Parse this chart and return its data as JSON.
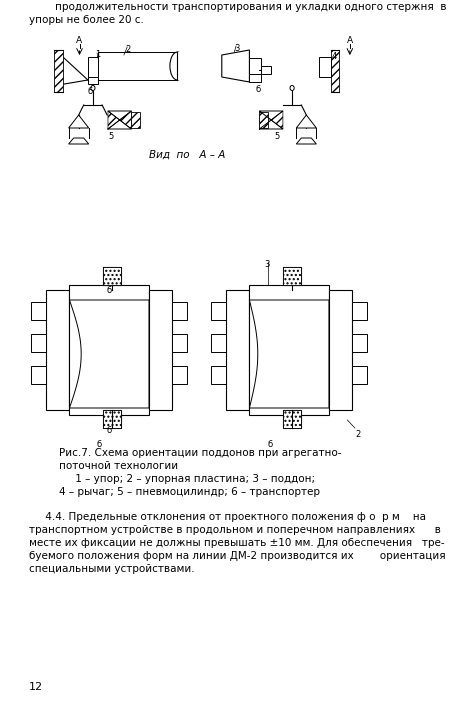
{
  "background_color": "#ffffff",
  "text_color": "#000000",
  "page_number": "12",
  "top_text_line1": "        продолжительности транспортирования и укладки одного стержня  в",
  "top_text_line2": "упоры не более 20 с.",
  "caption_line1": "Рис.7. Схема ориентации поддонов при агрегатно-",
  "caption_line2": "поточной технологии",
  "caption_line3": "     1 – упор; 2 – упорная пластина; 3 – поддон;",
  "caption_line4": "4 – рычаг; 5 – пневмоцилиндр; 6 – транспортер",
  "para_line1": "     4.4. Предельные отклонения от проектного положения ф о  р м    на",
  "para_line2": "транспортном устройстве в продольном и поперечном направлениях      в",
  "para_line3": "месте их фиксации не должны превышать ±10 мм. Для обеспечения   тре-",
  "para_line4": "буемого положения форм на линии ДМ-2 производится их        ориентация",
  "para_line5": "специальными устройствами.",
  "vid_label": "Вид  по   А – А",
  "font_size_body": 7.5,
  "font_size_caption": 7.5,
  "font_size_page": 8
}
